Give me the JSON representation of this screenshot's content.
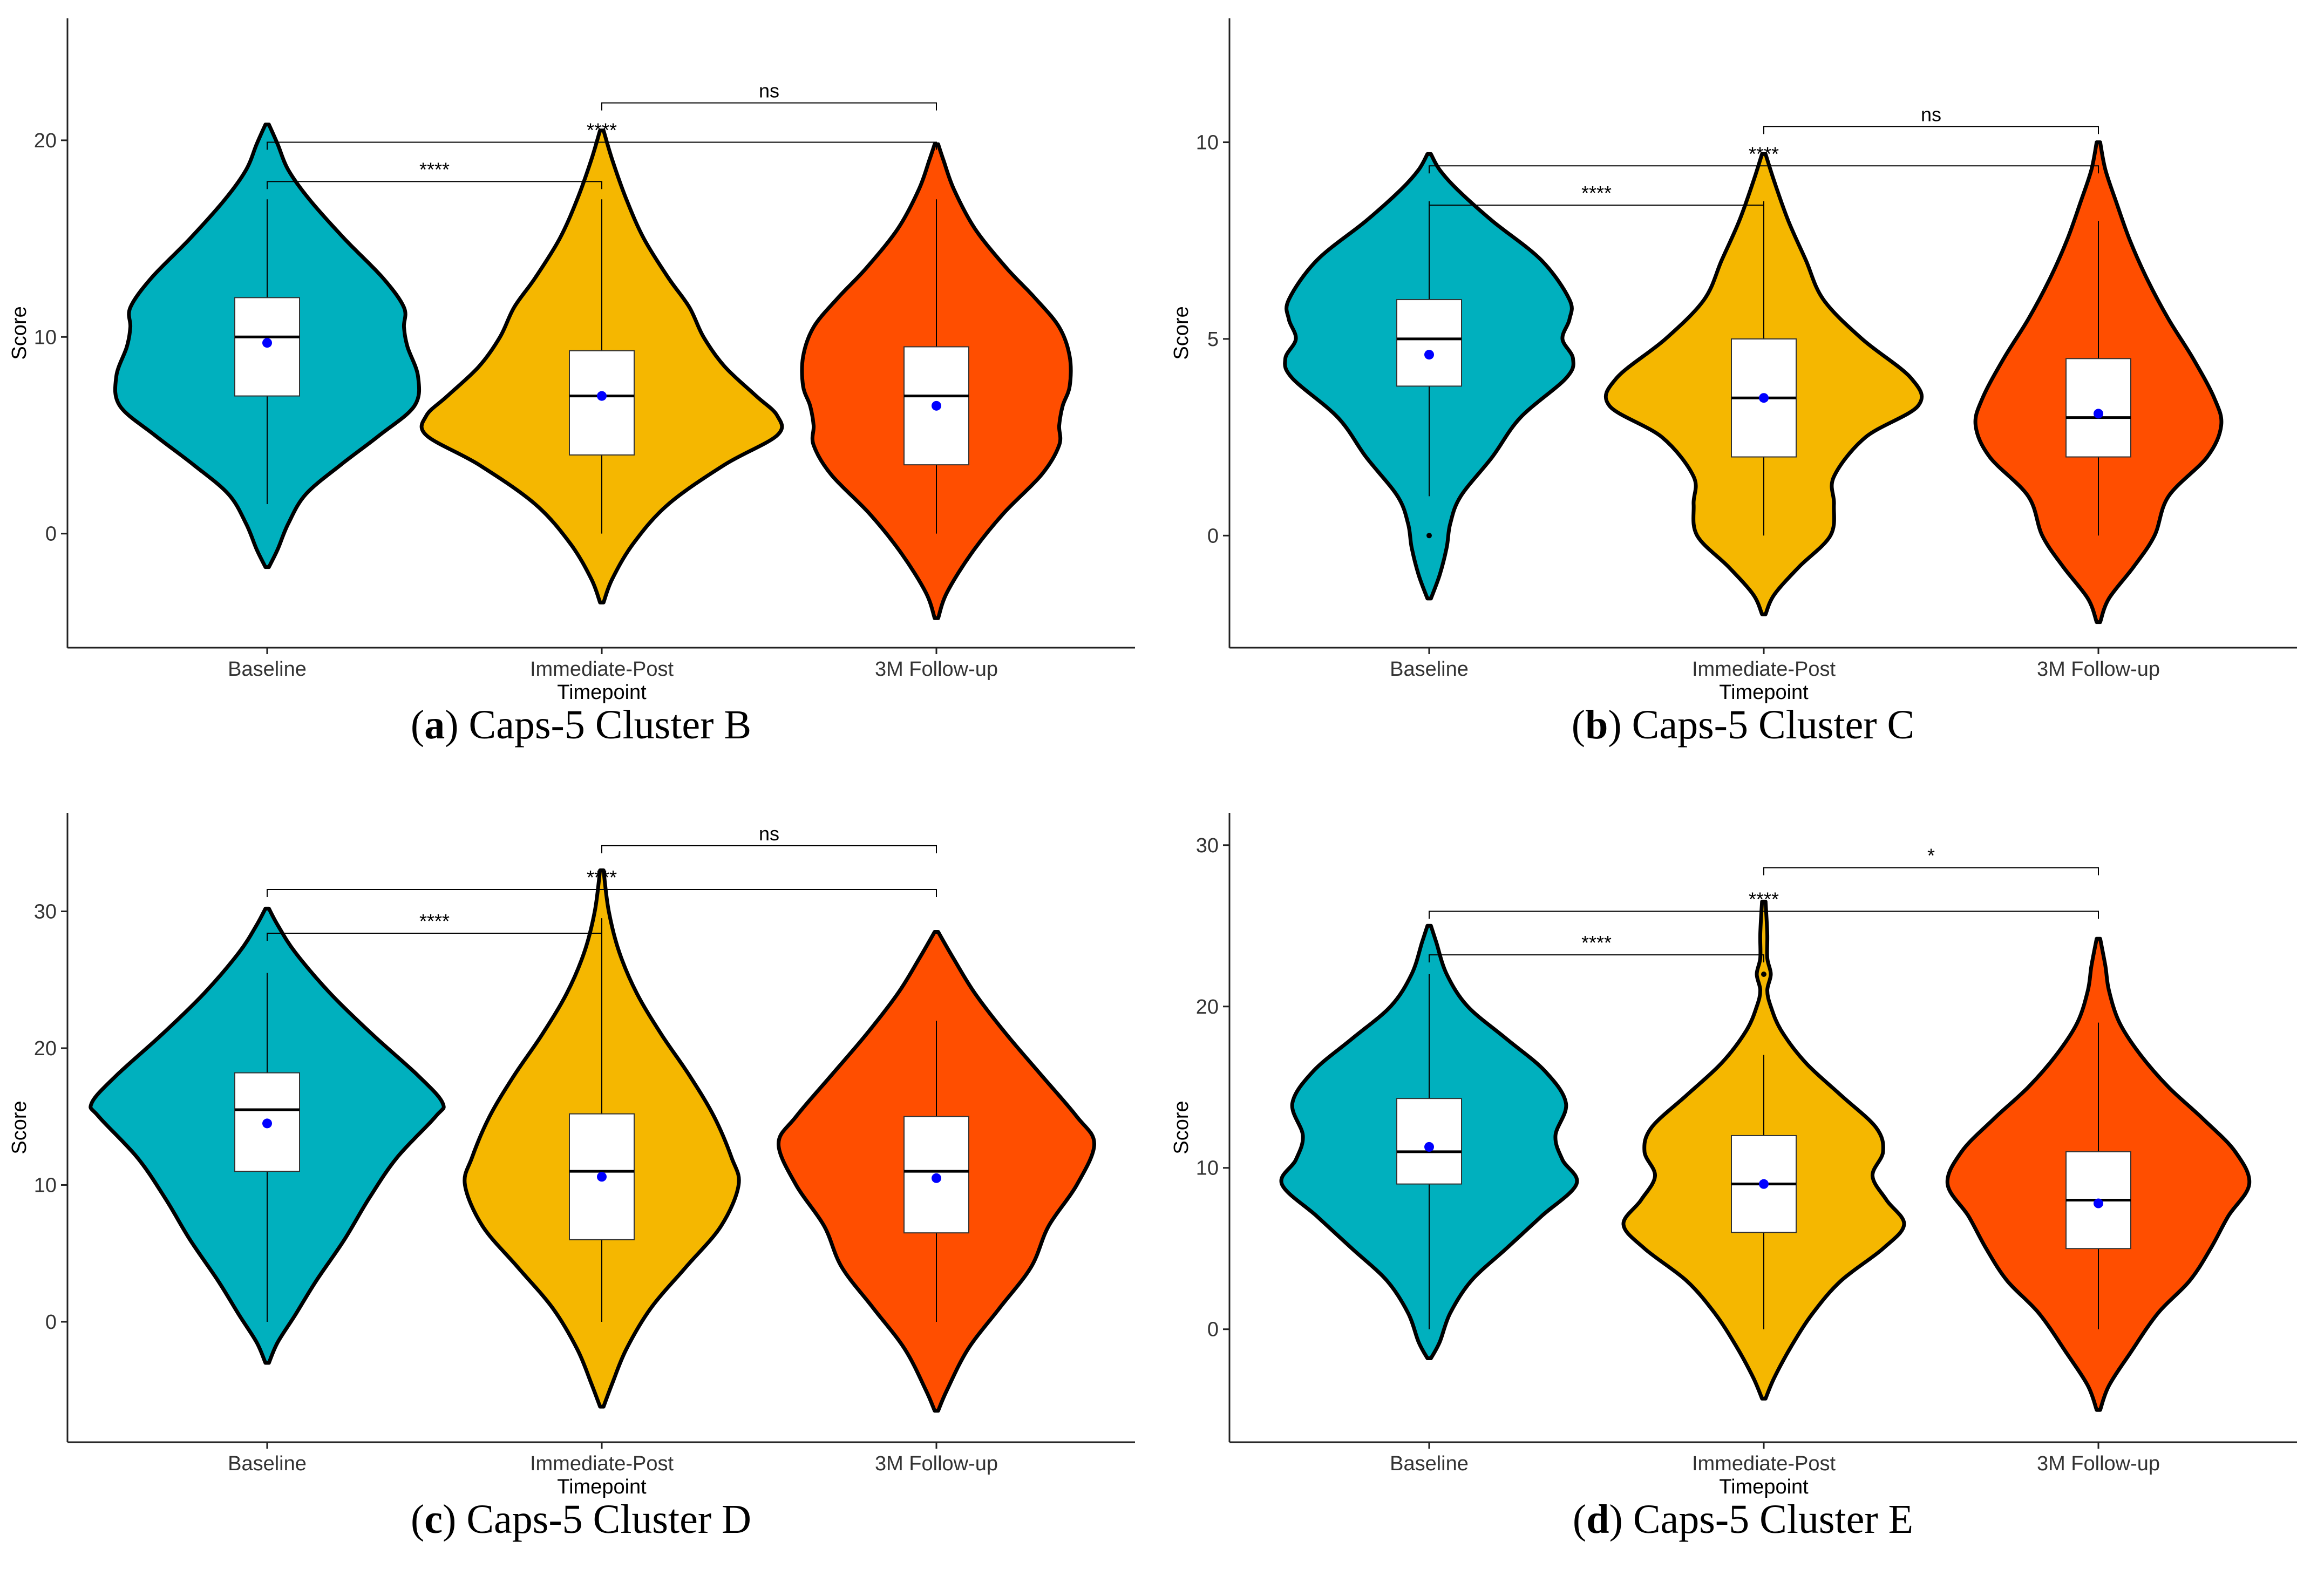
{
  "categories": [
    "Baseline",
    "Immediate-Post",
    "3M Follow-up"
  ],
  "colors": [
    "#00B0BE",
    "#F5B700",
    "#FF4E00"
  ],
  "mean_color": "#0000FF",
  "chart_data": [
    {
      "type": "violin",
      "letter": "a",
      "caption": "Caps-5 Cluster B",
      "ylabel": "Score",
      "xlabel": "Timepoint",
      "categories": [
        "Baseline",
        "Immediate-Post",
        "3M Follow-up"
      ],
      "ylim": [
        -5.8,
        26.2
      ],
      "yticks": [
        0,
        10,
        20
      ],
      "series": [
        {
          "min": 1.5,
          "q1": 7,
          "median": 10,
          "q3": 12,
          "max": 17,
          "mean": 9.7,
          "outliers": [],
          "density": [
            [
              -1.7,
              0.005
            ],
            [
              -0.8,
              0.03
            ],
            [
              0.5,
              0.06
            ],
            [
              2,
              0.11
            ],
            [
              3.5,
              0.21
            ],
            [
              5,
              0.32
            ],
            [
              6.5,
              0.42
            ],
            [
              8,
              0.43
            ],
            [
              9.5,
              0.4
            ],
            [
              10.5,
              0.39
            ],
            [
              11.5,
              0.39
            ],
            [
              13,
              0.33
            ],
            [
              15,
              0.22
            ],
            [
              17,
              0.12
            ],
            [
              18.5,
              0.06
            ],
            [
              19.8,
              0.03
            ],
            [
              20.8,
              0.005
            ]
          ]
        },
        {
          "min": 0,
          "q1": 4,
          "median": 7,
          "q3": 9.3,
          "max": 17,
          "mean": 7,
          "outliers": [],
          "density": [
            [
              -3.5,
              0.005
            ],
            [
              -2.3,
              0.03
            ],
            [
              -0.5,
              0.09
            ],
            [
              1.5,
              0.19
            ],
            [
              3.5,
              0.35
            ],
            [
              5,
              0.5
            ],
            [
              6,
              0.5
            ],
            [
              7,
              0.44
            ],
            [
              8.5,
              0.35
            ],
            [
              10,
              0.29
            ],
            [
              11.5,
              0.25
            ],
            [
              13,
              0.19
            ],
            [
              15,
              0.12
            ],
            [
              17,
              0.07
            ],
            [
              19,
              0.03
            ],
            [
              20.5,
              0.005
            ]
          ]
        },
        {
          "min": 0,
          "q1": 3.5,
          "median": 7,
          "q3": 9.5,
          "max": 17,
          "mean": 6.5,
          "outliers": [],
          "density": [
            [
              -4.3,
              0.005
            ],
            [
              -3,
              0.03
            ],
            [
              -1,
              0.1
            ],
            [
              1,
              0.19
            ],
            [
              3,
              0.3
            ],
            [
              4.5,
              0.35
            ],
            [
              5.5,
              0.35
            ],
            [
              6.5,
              0.36
            ],
            [
              7.5,
              0.38
            ],
            [
              9,
              0.38
            ],
            [
              10.5,
              0.35
            ],
            [
              12,
              0.28
            ],
            [
              13.5,
              0.2
            ],
            [
              15.5,
              0.11
            ],
            [
              17.5,
              0.05
            ],
            [
              19,
              0.02
            ],
            [
              19.8,
              0.005
            ]
          ]
        }
      ],
      "brackets": [
        {
          "from": 0,
          "to": 1,
          "y": 17.9,
          "label": "****"
        },
        {
          "from": 0,
          "to": 2,
          "y": 19.9,
          "label": "****"
        },
        {
          "from": 1,
          "to": 2,
          "y": 21.9,
          "label": "ns"
        }
      ]
    },
    {
      "type": "violin",
      "letter": "b",
      "caption": "Caps-5 Cluster C",
      "ylabel": "Score",
      "xlabel": "Timepoint",
      "categories": [
        "Baseline",
        "Immediate-Post",
        "3M Follow-up"
      ],
      "ylim": [
        -2.85,
        13.15
      ],
      "yticks": [
        0,
        5,
        10
      ],
      "series": [
        {
          "min": 1,
          "q1": 3.8,
          "median": 5,
          "q3": 6,
          "max": 8.5,
          "mean": 4.6,
          "outliers": [
            0
          ],
          "density": [
            [
              -1.6,
              0.005
            ],
            [
              -1,
              0.03
            ],
            [
              -0.3,
              0.05
            ],
            [
              0.3,
              0.06
            ],
            [
              1,
              0.09
            ],
            [
              2,
              0.18
            ],
            [
              3,
              0.26
            ],
            [
              4,
              0.39
            ],
            [
              4.5,
              0.41
            ],
            [
              5,
              0.38
            ],
            [
              5.5,
              0.4
            ],
            [
              6,
              0.4
            ],
            [
              7,
              0.32
            ],
            [
              8,
              0.18
            ],
            [
              8.8,
              0.08
            ],
            [
              9.3,
              0.03
            ],
            [
              9.7,
              0.005
            ]
          ]
        },
        {
          "min": 0,
          "q1": 2,
          "median": 3.5,
          "q3": 5,
          "max": 8.5,
          "mean": 3.5,
          "outliers": [],
          "density": [
            [
              -2,
              0.005
            ],
            [
              -1.5,
              0.03
            ],
            [
              -0.8,
              0.1
            ],
            [
              0,
              0.19
            ],
            [
              0.8,
              0.2
            ],
            [
              1.5,
              0.2
            ],
            [
              2.5,
              0.29
            ],
            [
              3.3,
              0.44
            ],
            [
              4,
              0.42
            ],
            [
              5,
              0.28
            ],
            [
              6,
              0.17
            ],
            [
              7,
              0.12
            ],
            [
              8,
              0.07
            ],
            [
              9,
              0.03
            ],
            [
              9.7,
              0.005
            ]
          ]
        },
        {
          "min": 0,
          "q1": 2,
          "median": 3,
          "q3": 4.5,
          "max": 8,
          "mean": 3.1,
          "outliers": [],
          "density": [
            [
              -2.2,
              0.005
            ],
            [
              -1.6,
              0.03
            ],
            [
              -0.8,
              0.1
            ],
            [
              0,
              0.16
            ],
            [
              1,
              0.2
            ],
            [
              2,
              0.31
            ],
            [
              2.8,
              0.35
            ],
            [
              3.5,
              0.33
            ],
            [
              4.5,
              0.27
            ],
            [
              5.5,
              0.2
            ],
            [
              6.5,
              0.14
            ],
            [
              7.5,
              0.09
            ],
            [
              8.5,
              0.05
            ],
            [
              9.3,
              0.02
            ],
            [
              10,
              0.005
            ]
          ]
        }
      ],
      "brackets": [
        {
          "from": 0,
          "to": 1,
          "y": 8.4,
          "label": "****"
        },
        {
          "from": 0,
          "to": 2,
          "y": 9.4,
          "label": "****"
        },
        {
          "from": 1,
          "to": 2,
          "y": 10.4,
          "label": "ns"
        }
      ]
    },
    {
      "type": "violin",
      "letter": "c",
      "caption": "Caps-5 Cluster D",
      "ylabel": "Score",
      "xlabel": "Timepoint",
      "categories": [
        "Baseline",
        "Immediate-Post",
        "3M Follow-up"
      ],
      "ylim": [
        -8.8,
        37.2
      ],
      "yticks": [
        0,
        10,
        20,
        30
      ],
      "series": [
        {
          "min": 0,
          "q1": 11,
          "median": 15.5,
          "q3": 18.2,
          "max": 25.5,
          "mean": 14.5,
          "outliers": [],
          "density": [
            [
              -3,
              0.005
            ],
            [
              -1.5,
              0.03
            ],
            [
              0.5,
              0.08
            ],
            [
              3,
              0.14
            ],
            [
              6,
              0.22
            ],
            [
              9,
              0.29
            ],
            [
              12,
              0.37
            ],
            [
              15,
              0.48
            ],
            [
              16,
              0.5
            ],
            [
              18,
              0.43
            ],
            [
              21,
              0.3
            ],
            [
              24,
              0.18
            ],
            [
              27,
              0.08
            ],
            [
              29,
              0.03
            ],
            [
              30.2,
              0.005
            ]
          ]
        },
        {
          "min": 0,
          "q1": 6,
          "median": 11,
          "q3": 15.2,
          "max": 29.5,
          "mean": 10.6,
          "outliers": [],
          "density": [
            [
              -6.2,
              0.005
            ],
            [
              -4.5,
              0.03
            ],
            [
              -2,
              0.07
            ],
            [
              1,
              0.14
            ],
            [
              4,
              0.24
            ],
            [
              7,
              0.34
            ],
            [
              10,
              0.39
            ],
            [
              12,
              0.37
            ],
            [
              15,
              0.32
            ],
            [
              18,
              0.25
            ],
            [
              21,
              0.17
            ],
            [
              24,
              0.1
            ],
            [
              27,
              0.05
            ],
            [
              30,
              0.02
            ],
            [
              33,
              0.005
            ]
          ]
        },
        {
          "min": 0,
          "q1": 6.5,
          "median": 11,
          "q3": 15,
          "max": 22,
          "mean": 10.5,
          "outliers": [],
          "density": [
            [
              -6.5,
              0.005
            ],
            [
              -5,
              0.03
            ],
            [
              -2,
              0.09
            ],
            [
              1,
              0.18
            ],
            [
              4,
              0.27
            ],
            [
              7,
              0.32
            ],
            [
              10,
              0.4
            ],
            [
              13,
              0.45
            ],
            [
              15,
              0.4
            ],
            [
              18,
              0.3
            ],
            [
              21,
              0.2
            ],
            [
              24,
              0.11
            ],
            [
              26.5,
              0.05
            ],
            [
              28.5,
              0.005
            ]
          ]
        }
      ],
      "brackets": [
        {
          "from": 0,
          "to": 1,
          "y": 28.4,
          "label": "****"
        },
        {
          "from": 0,
          "to": 2,
          "y": 31.6,
          "label": "****"
        },
        {
          "from": 1,
          "to": 2,
          "y": 34.8,
          "label": "ns"
        }
      ]
    },
    {
      "type": "violin",
      "letter": "d",
      "caption": "Caps-5 Cluster E",
      "ylabel": "Score",
      "xlabel": "Timepoint",
      "categories": [
        "Baseline",
        "Immediate-Post",
        "3M Follow-up"
      ],
      "ylim": [
        -7.0,
        32.0
      ],
      "yticks": [
        0,
        10,
        20,
        30
      ],
      "series": [
        {
          "min": 0,
          "q1": 9,
          "median": 11,
          "q3": 14.3,
          "max": 22,
          "mean": 11.3,
          "outliers": [],
          "density": [
            [
              -1.8,
              0.005
            ],
            [
              -0.8,
              0.03
            ],
            [
              1,
              0.06
            ],
            [
              3,
              0.12
            ],
            [
              5,
              0.22
            ],
            [
              7,
              0.32
            ],
            [
              9,
              0.42
            ],
            [
              10.5,
              0.38
            ],
            [
              12,
              0.36
            ],
            [
              14,
              0.39
            ],
            [
              16,
              0.33
            ],
            [
              18,
              0.22
            ],
            [
              20,
              0.11
            ],
            [
              22,
              0.05
            ],
            [
              24,
              0.02
            ],
            [
              25,
              0.005
            ]
          ]
        },
        {
          "min": 0,
          "q1": 6,
          "median": 9,
          "q3": 12,
          "max": 17,
          "mean": 9,
          "outliers": [
            22
          ],
          "density": [
            [
              -4.3,
              0.005
            ],
            [
              -3,
              0.03
            ],
            [
              -1,
              0.08
            ],
            [
              1,
              0.14
            ],
            [
              3,
              0.22
            ],
            [
              5,
              0.34
            ],
            [
              6.5,
              0.4
            ],
            [
              8,
              0.35
            ],
            [
              9.5,
              0.31
            ],
            [
              11,
              0.34
            ],
            [
              12.5,
              0.32
            ],
            [
              14.5,
              0.22
            ],
            [
              16.5,
              0.12
            ],
            [
              18.5,
              0.05
            ],
            [
              20,
              0.02
            ],
            [
              21,
              0.01
            ],
            [
              22,
              0.02
            ],
            [
              23,
              0.01
            ],
            [
              24.5,
              0.01
            ],
            [
              26.5,
              0.005
            ]
          ]
        },
        {
          "min": 0,
          "q1": 5,
          "median": 8,
          "q3": 11,
          "max": 19,
          "mean": 7.8,
          "outliers": [],
          "density": [
            [
              -5,
              0.005
            ],
            [
              -3.5,
              0.03
            ],
            [
              -1.5,
              0.09
            ],
            [
              1,
              0.17
            ],
            [
              3,
              0.26
            ],
            [
              5,
              0.32
            ],
            [
              7,
              0.37
            ],
            [
              9,
              0.43
            ],
            [
              11,
              0.39
            ],
            [
              13,
              0.3
            ],
            [
              15,
              0.2
            ],
            [
              17,
              0.12
            ],
            [
              19,
              0.06
            ],
            [
              21,
              0.03
            ],
            [
              22.5,
              0.02
            ],
            [
              24.2,
              0.005
            ]
          ]
        }
      ],
      "brackets": [
        {
          "from": 0,
          "to": 1,
          "y": 23.2,
          "label": "****"
        },
        {
          "from": 0,
          "to": 2,
          "y": 25.9,
          "label": "****"
        },
        {
          "from": 1,
          "to": 2,
          "y": 28.6,
          "label": "*"
        }
      ]
    }
  ]
}
